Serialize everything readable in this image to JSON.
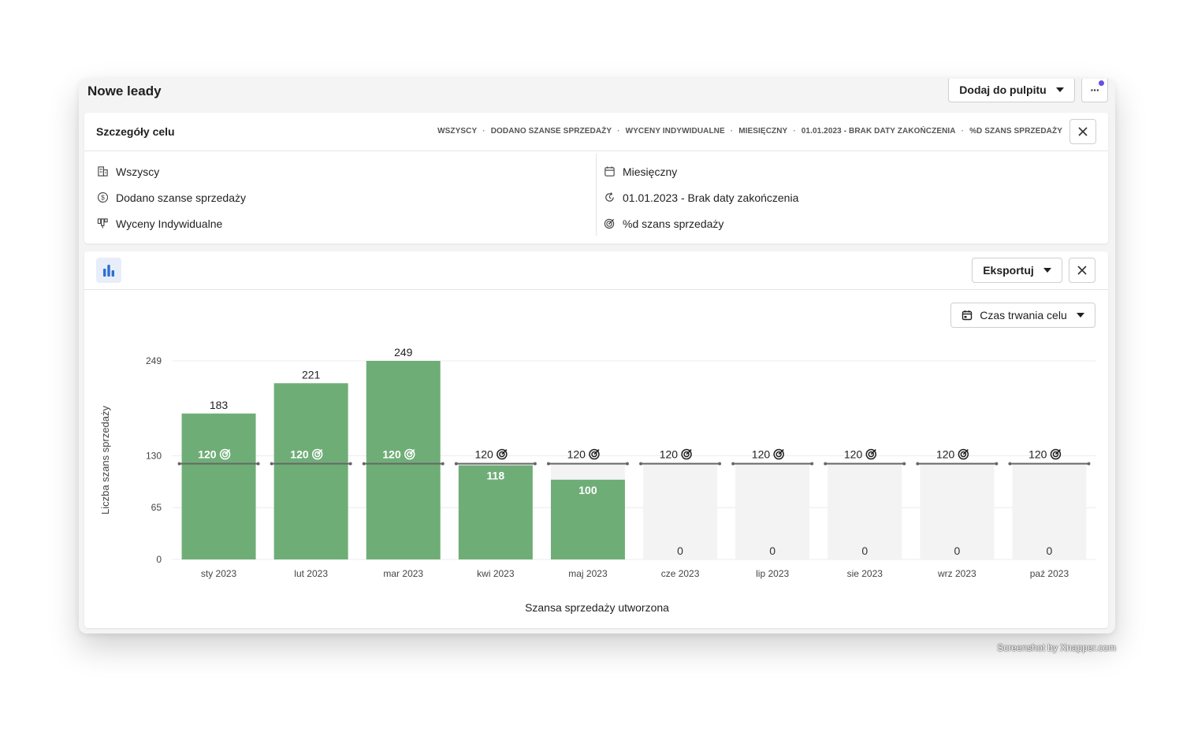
{
  "window": {
    "title": "Nowe leady",
    "add_to_dashboard_label": "Dodaj do pulpitu",
    "more_label": "···"
  },
  "goal": {
    "title": "Szczegóły celu",
    "breadcrumbs": [
      "WSZYSCY",
      "DODANO SZANSE SPRZEDAŻY",
      "WYCENY INDYWIDUALNE",
      "MIESIĘCZNY",
      "01.01.2023 - BRAK DATY ZAKOŃCZENIA",
      "%D SZANS SPRZEDAŻY"
    ],
    "details_left": [
      {
        "icon": "building-icon",
        "text": "Wszyscy"
      },
      {
        "icon": "dollar-circle-icon",
        "text": "Dodano szanse sprzedaży"
      },
      {
        "icon": "pipeline-icon",
        "text": "Wyceny Indywidualne"
      }
    ],
    "details_right": [
      {
        "icon": "calendar-icon",
        "text": "Miesięczny"
      },
      {
        "icon": "recurring-icon",
        "text": "01.01.2023 - Brak daty zakończenia"
      },
      {
        "icon": "target-icon",
        "text": "%d szans sprzedaży"
      }
    ]
  },
  "report": {
    "export_label": "Eksportuj",
    "period_label": "Czas trwania celu"
  },
  "colors": {
    "bar": "#6fad77",
    "bar_empty": "#f3f3f3",
    "goal_line": "#666666",
    "accent": "#2e6fcd"
  },
  "chart_data": {
    "type": "bar",
    "categories": [
      "sty 2023",
      "lut 2023",
      "mar 2023",
      "kwi 2023",
      "maj 2023",
      "cze 2023",
      "lip 2023",
      "sie 2023",
      "wrz 2023",
      "paź 2023"
    ],
    "values": [
      183,
      221,
      249,
      118,
      100,
      0,
      0,
      0,
      0,
      0
    ],
    "goal": 120,
    "goal_labels": [
      "120",
      "120",
      "120",
      "120",
      "120",
      "120",
      "120",
      "120",
      "120",
      "120"
    ],
    "xlabel": "Szansa sprzedaży utworzona",
    "ylabel": "Liczba szans sprzedaży",
    "yticks": [
      0,
      65,
      130,
      249
    ],
    "ylim": [
      0,
      249
    ],
    "grid": true
  },
  "watermark": "Screenshot by Xnapper.com"
}
